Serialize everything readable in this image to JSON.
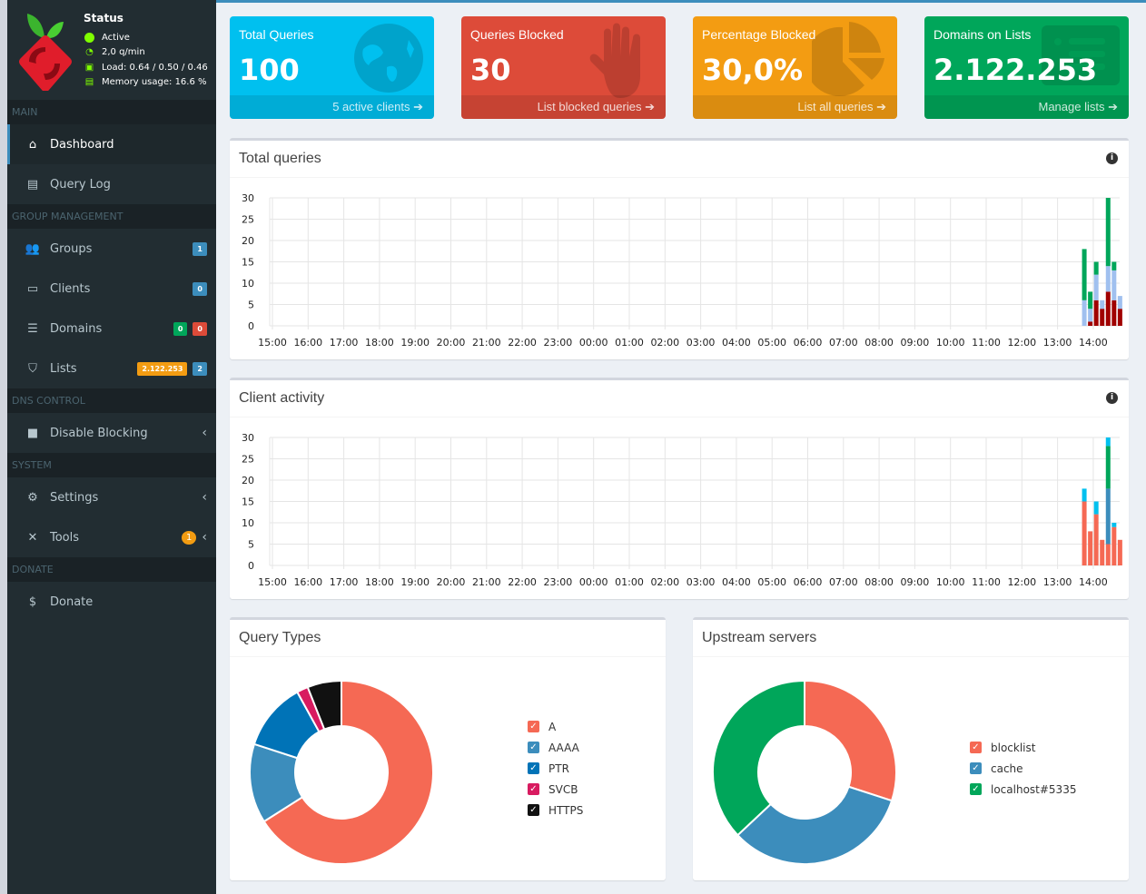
{
  "status": {
    "title": "Status",
    "active": "Active",
    "rate": "2,0 q/min",
    "load": "Load: 0.64 / 0.50 / 0.46",
    "memory": "Memory usage: 16.6 %"
  },
  "sidebar": {
    "sections": [
      "MAIN",
      "GROUP MANAGEMENT",
      "DNS CONTROL",
      "SYSTEM",
      "DONATE"
    ],
    "items": [
      {
        "label": "Dashboard",
        "icon": "home-icon"
      },
      {
        "label": "Query Log",
        "icon": "file-icon"
      },
      {
        "label": "Groups",
        "icon": "users-icon",
        "badges": [
          "1"
        ]
      },
      {
        "label": "Clients",
        "icon": "laptop-icon",
        "badges": [
          "0"
        ]
      },
      {
        "label": "Domains",
        "icon": "list-icon",
        "badges": [
          "0",
          "0"
        ]
      },
      {
        "label": "Lists",
        "icon": "shield-icon",
        "badges": [
          "2.122.253",
          "2"
        ]
      },
      {
        "label": "Disable Blocking",
        "icon": "stop-icon"
      },
      {
        "label": "Settings",
        "icon": "cogs-icon"
      },
      {
        "label": "Tools",
        "icon": "tools-icon",
        "badges": [
          "1"
        ]
      },
      {
        "label": "Donate",
        "icon": "donate-icon"
      }
    ]
  },
  "stats": [
    {
      "label": "Total Queries",
      "value": "100",
      "link": "5 active clients",
      "color": "#00c0ef",
      "icon": "globe-icon"
    },
    {
      "label": "Queries Blocked",
      "value": "30",
      "link": "List blocked queries",
      "color": "#dd4b39",
      "icon": "hand-icon"
    },
    {
      "label": "Percentage Blocked",
      "value": "30,0%",
      "link": "List all queries",
      "color": "#f39c12",
      "icon": "pie-chart-icon"
    },
    {
      "label": "Domains on Lists",
      "value": "2.122.253",
      "link": "Manage lists",
      "color": "#00a65a",
      "icon": "list-alt-icon"
    }
  ],
  "panels": {
    "total": "Total queries",
    "clients": "Client activity",
    "types": "Query Types",
    "upstream": "Upstream servers"
  },
  "chart_data": [
    {
      "type": "bar",
      "stacked": true,
      "ylim": [
        0,
        30
      ],
      "yticks": [
        "0",
        "5",
        "10",
        "15",
        "20",
        "25",
        "30"
      ],
      "xticks": [
        "15:00",
        "16:00",
        "17:00",
        "18:00",
        "19:00",
        "20:00",
        "21:00",
        "22:00",
        "23:00",
        "00:00",
        "01:00",
        "02:00",
        "03:00",
        "04:00",
        "05:00",
        "06:00",
        "07:00",
        "08:00",
        "09:00",
        "10:00",
        "11:00",
        "12:00",
        "13:00",
        "14:00"
      ],
      "x": [
        "13:45",
        "13:55",
        "14:05",
        "14:15",
        "14:25",
        "14:35",
        "14:45"
      ],
      "series": [
        {
          "color": "#a00000",
          "values": [
            0,
            1,
            6,
            4,
            8,
            6,
            4
          ]
        },
        {
          "color": "#a0c0ef",
          "values": [
            6,
            3,
            6,
            2,
            6,
            7,
            3
          ]
        },
        {
          "color": "#00a65a",
          "values": [
            12,
            4,
            3,
            0,
            16,
            2,
            0
          ]
        }
      ],
      "grid": true
    },
    {
      "type": "bar",
      "stacked": true,
      "ylim": [
        0,
        30
      ],
      "yticks": [
        "0",
        "5",
        "10",
        "15",
        "20",
        "25",
        "30"
      ],
      "xticks": [
        "15:00",
        "16:00",
        "17:00",
        "18:00",
        "19:00",
        "20:00",
        "21:00",
        "22:00",
        "23:00",
        "00:00",
        "01:00",
        "02:00",
        "03:00",
        "04:00",
        "05:00",
        "06:00",
        "07:00",
        "08:00",
        "09:00",
        "10:00",
        "11:00",
        "12:00",
        "13:00",
        "14:00"
      ],
      "x": [
        "13:45",
        "13:55",
        "14:05",
        "14:15",
        "14:25",
        "14:35",
        "14:45"
      ],
      "series": [
        {
          "color": "#f56954",
          "values": [
            15,
            8,
            12,
            6,
            5,
            9,
            6
          ]
        },
        {
          "color": "#3c8dbc",
          "values": [
            0,
            0,
            0,
            0,
            13,
            0,
            0
          ]
        },
        {
          "color": "#00a65a",
          "values": [
            0,
            0,
            0,
            0,
            10,
            0,
            0
          ]
        },
        {
          "color": "#00c0ef",
          "values": [
            3,
            0,
            3,
            0,
            2,
            1,
            0
          ]
        }
      ],
      "grid": true
    },
    {
      "type": "pie",
      "donut": true,
      "labels": [
        "A",
        "AAAA",
        "PTR",
        "SVCB",
        "HTTPS"
      ],
      "values": [
        66,
        14,
        12,
        2,
        6
      ],
      "colors": [
        "#f56954",
        "#3c8dbc",
        "#0073b7",
        "#d81b60",
        "#111111"
      ]
    },
    {
      "type": "pie",
      "donut": true,
      "labels": [
        "blocklist",
        "cache",
        "localhost#5335"
      ],
      "values": [
        30,
        33,
        37
      ],
      "colors": [
        "#f56954",
        "#3c8dbc",
        "#00a65a"
      ]
    }
  ]
}
